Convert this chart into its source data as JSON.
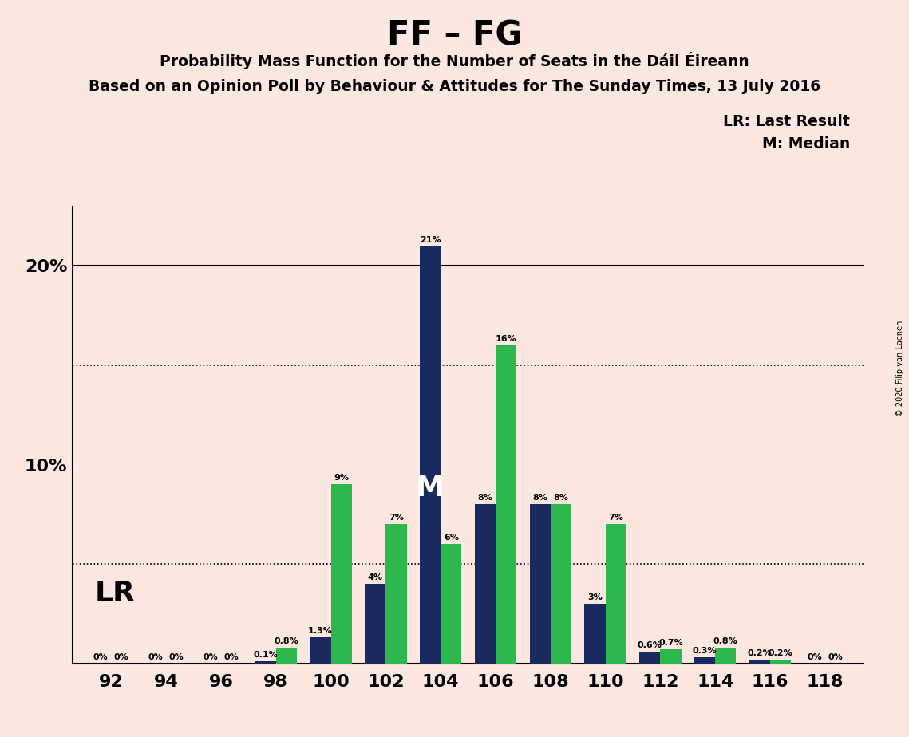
{
  "title": "FF – FG",
  "subtitle1": "Probability Mass Function for the Number of Seats in the Dáil Éireann",
  "subtitle2": "Based on an Opinion Poll by Behaviour & Attitudes for The Sunday Times, 13 July 2016",
  "copyright": "© 2020 Filip van Laenen",
  "legend_lr": "LR: Last Result",
  "legend_m": "M: Median",
  "seats": [
    92,
    94,
    96,
    98,
    100,
    102,
    104,
    106,
    108,
    110,
    112,
    114,
    116,
    118
  ],
  "navy_values": [
    0.0,
    0.0,
    0.0,
    0.1,
    1.3,
    4.0,
    21.0,
    8.0,
    8.0,
    3.0,
    0.6,
    0.3,
    0.2,
    0.0
  ],
  "green_values": [
    0.0,
    0.0,
    0.0,
    0.8,
    9.0,
    7.0,
    6.0,
    16.0,
    8.0,
    7.0,
    0.7,
    0.8,
    0.2,
    0.0
  ],
  "navy_labels": [
    "0%",
    "0%",
    "0%",
    "0.1%",
    "1.3%",
    "4%",
    "21%",
    "8%",
    "8%",
    "3%",
    "0.6%",
    "0.3%",
    "0.2%",
    "0%"
  ],
  "green_labels": [
    "0%",
    "0%",
    "0%",
    "0.8%",
    "9%",
    "7%",
    "6%",
    "16%",
    "8%",
    "7%",
    "0.7%",
    "0.8%",
    "0.2%",
    "0%"
  ],
  "navy_color": "#1a2a5e",
  "green_color": "#2db84d",
  "background_color": "#fce8e0",
  "median_seat": 104,
  "lr_seat": 98,
  "bar_width": 0.38,
  "ylim": [
    0,
    23
  ],
  "yticks": [
    10,
    20
  ],
  "ytick_labels": [
    "10%",
    "20%"
  ],
  "dotted_lines": [
    5.0,
    15.0
  ],
  "solid_line": 20.0
}
